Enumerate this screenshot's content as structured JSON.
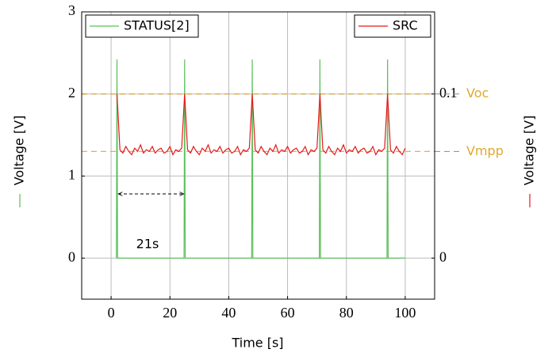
{
  "chart_data": {
    "type": "line",
    "xlabel": "Time [s]",
    "ylabel": "Voltage [V]",
    "y2label": "Voltage [V]",
    "xlim": [
      -10,
      110
    ],
    "xticks": [
      0,
      20,
      40,
      60,
      80,
      100
    ],
    "ylim": [
      -0.5,
      3
    ],
    "yticks": [
      0,
      1,
      2,
      3
    ],
    "y2lim": [
      -0.025,
      0.15
    ],
    "y2ticks": [
      0,
      0.1
    ],
    "grid": true,
    "series": [
      {
        "name": "STATUS[2]",
        "color": "#5cbf5c",
        "legend": "upper left",
        "x": [
          1.8,
          2,
          2.2,
          24.8,
          25,
          25.2,
          47.8,
          48,
          48.2,
          70.8,
          71,
          71.2,
          93.8,
          94,
          94.2,
          100
        ],
        "values": [
          0,
          2.42,
          0,
          0,
          2.42,
          0,
          0,
          2.42,
          0,
          0,
          2.42,
          0,
          0,
          2.42,
          0,
          0
        ]
      },
      {
        "name": "SRC",
        "color": "#e41a1c",
        "axis": "y2",
        "legend": "upper right",
        "x": [
          2,
          3,
          4,
          5,
          6,
          7,
          8,
          9,
          10,
          11,
          12,
          13,
          14,
          15,
          16,
          17,
          18,
          19,
          20,
          21,
          22,
          23,
          24,
          25,
          26,
          27,
          28,
          29,
          30,
          31,
          32,
          33,
          34,
          35,
          36,
          37,
          38,
          39,
          40,
          41,
          42,
          43,
          44,
          45,
          46,
          47,
          48,
          49,
          50,
          51,
          52,
          53,
          54,
          55,
          56,
          57,
          58,
          59,
          60,
          61,
          62,
          63,
          64,
          65,
          66,
          67,
          68,
          69,
          70,
          71,
          72,
          73,
          74,
          75,
          76,
          77,
          78,
          79,
          80,
          81,
          82,
          83,
          84,
          85,
          86,
          87,
          88,
          89,
          90,
          91,
          92,
          93,
          94,
          95,
          96,
          97,
          98,
          99,
          100
        ],
        "values": [
          0.1,
          0.066,
          0.064,
          0.068,
          0.065,
          0.063,
          0.067,
          0.065,
          0.069,
          0.064,
          0.066,
          0.065,
          0.068,
          0.064,
          0.066,
          0.067,
          0.064,
          0.065,
          0.068,
          0.063,
          0.066,
          0.065,
          0.067,
          0.1,
          0.066,
          0.064,
          0.068,
          0.065,
          0.063,
          0.067,
          0.065,
          0.069,
          0.064,
          0.066,
          0.065,
          0.068,
          0.064,
          0.066,
          0.067,
          0.064,
          0.065,
          0.068,
          0.063,
          0.066,
          0.065,
          0.067,
          0.1,
          0.066,
          0.064,
          0.068,
          0.065,
          0.063,
          0.067,
          0.065,
          0.069,
          0.064,
          0.066,
          0.065,
          0.068,
          0.064,
          0.066,
          0.067,
          0.064,
          0.065,
          0.068,
          0.063,
          0.066,
          0.065,
          0.067,
          0.1,
          0.066,
          0.064,
          0.068,
          0.065,
          0.063,
          0.067,
          0.065,
          0.069,
          0.064,
          0.066,
          0.065,
          0.068,
          0.064,
          0.066,
          0.067,
          0.064,
          0.065,
          0.068,
          0.063,
          0.066,
          0.065,
          0.067,
          0.1,
          0.066,
          0.064,
          0.068,
          0.065,
          0.063,
          0.067
        ]
      }
    ],
    "hlines": [
      {
        "label": "Voc",
        "value": 2,
        "color": "#e0a82e"
      },
      {
        "label": "Vmpp",
        "value": 1.3,
        "color": "#e0a82e"
      }
    ],
    "annotations": [
      {
        "text": "21s"
      }
    ]
  }
}
